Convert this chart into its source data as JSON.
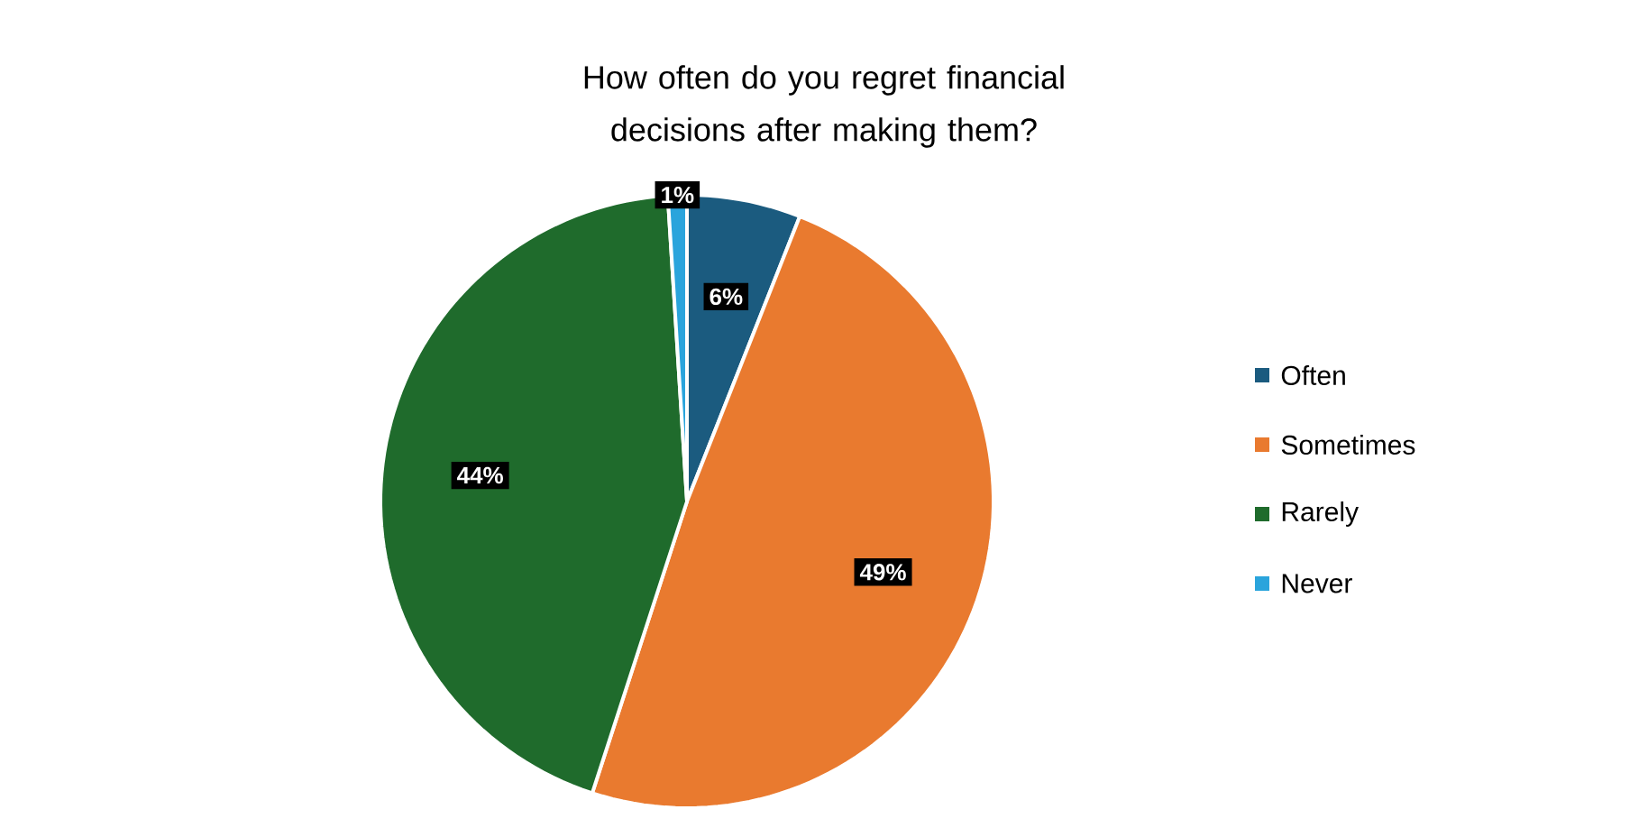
{
  "chart_data": {
    "type": "pie",
    "title": "How often do you regret financial decisions after making them?",
    "categories": [
      "Often",
      "Sometimes",
      "Rarely",
      "Never"
    ],
    "values": [
      6,
      49,
      44,
      1
    ],
    "colors": [
      "#1b5b7f",
      "#e97a2f",
      "#1f6b2c",
      "#2aa4dc"
    ],
    "value_labels": [
      "6%",
      "49%",
      "44%",
      "1%"
    ],
    "legend": "right"
  }
}
